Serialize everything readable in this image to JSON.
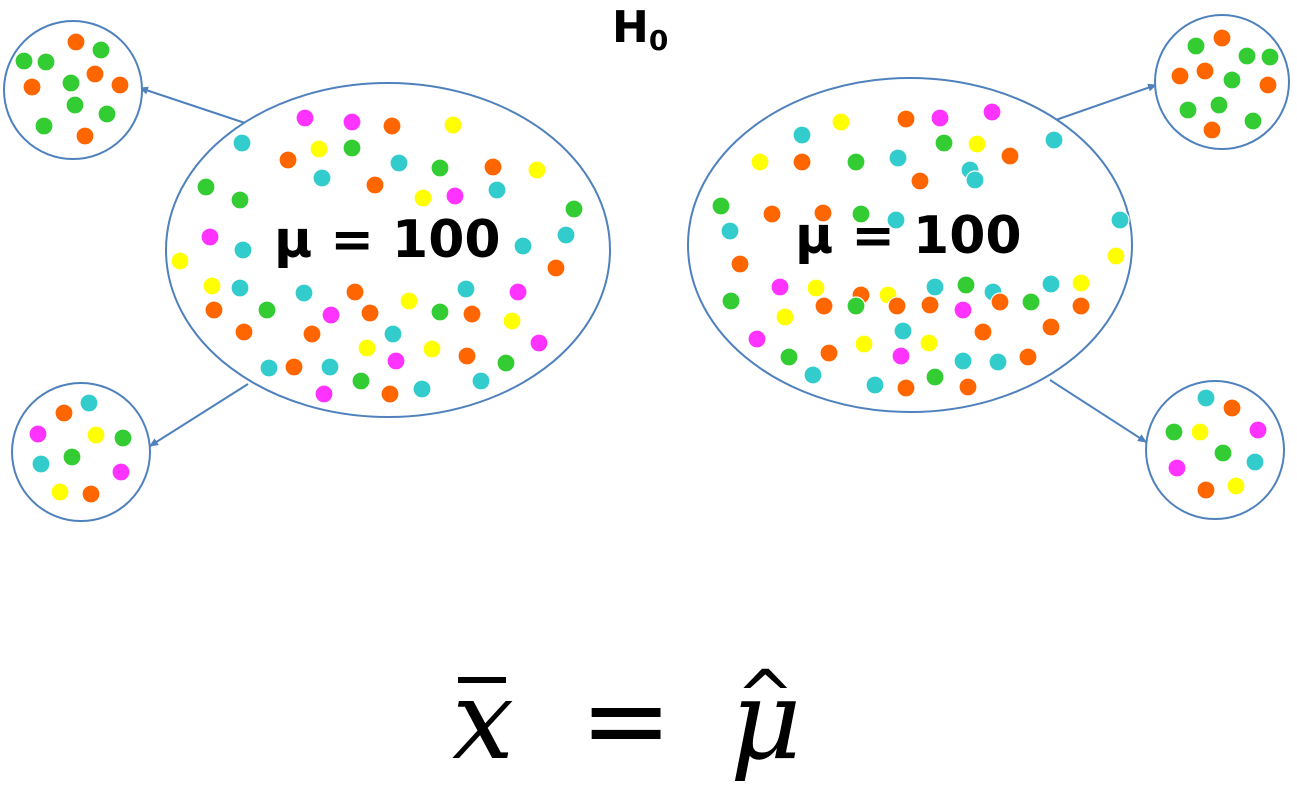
{
  "hypothesis": {
    "symbol": "H",
    "subscript": "0"
  },
  "populations": [
    {
      "label": "μ = 100"
    },
    {
      "label": "μ = 100"
    }
  ],
  "equation": {
    "lhs": "x",
    "lhs_accent": "bar",
    "operator": "=",
    "rhs": "μ",
    "rhs_accent": "hat",
    "hat_glyph": "^"
  },
  "colors": {
    "outline": "#4f81bd",
    "arrow": "#4f81bd",
    "dot_orange": "#ff6600",
    "dot_green": "#33cc33",
    "dot_cyan": "#33cccc",
    "dot_magenta": "#ff33ff",
    "dot_yellow": "#ffff00",
    "dot_stroke": "#ffffff"
  }
}
